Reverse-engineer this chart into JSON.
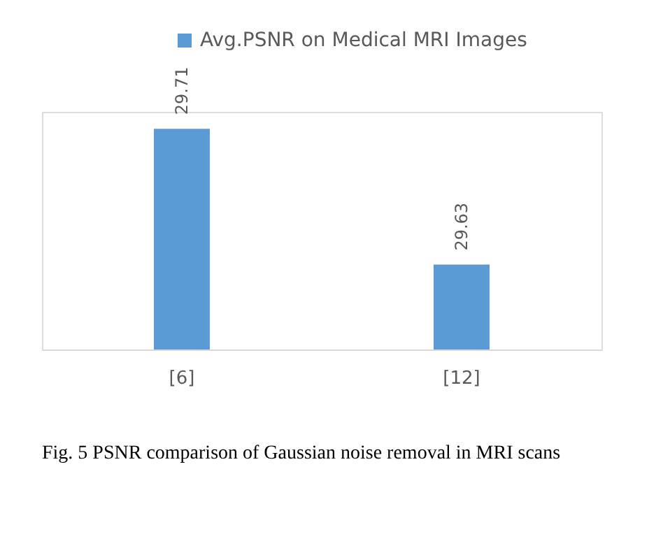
{
  "chart_data": {
    "type": "bar",
    "categories": [
      "[6]",
      "[12]"
    ],
    "series": [
      {
        "name": "Avg.PSNR on Medical MRI Images",
        "color": "#5b9bd5",
        "values": [
          29.71,
          29.63
        ]
      }
    ],
    "ylim": [
      29.58,
      29.72
    ],
    "tick_labels": "x",
    "legend": "top",
    "data_labels": true,
    "annotations": [
      "Fig. 5      PSNR comparison of Gaussian noise removal in MRI scans"
    ]
  }
}
